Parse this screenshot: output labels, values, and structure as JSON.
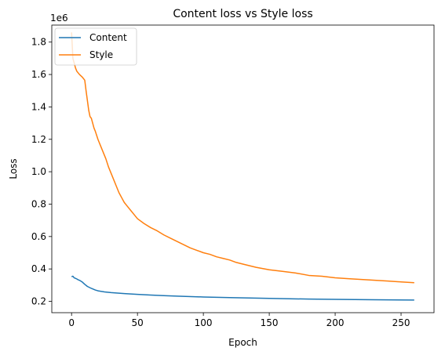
{
  "chart_data": {
    "type": "line",
    "title": "Content loss vs Style loss",
    "xlabel": "Epoch",
    "ylabel": "Loss",
    "y_offset_label": "1e6",
    "xlim": [
      -15,
      275
    ],
    "ylim": [
      0.13,
      1.905
    ],
    "x_ticks": [
      0,
      50,
      100,
      150,
      200,
      250
    ],
    "x_tick_labels": [
      "0",
      "50",
      "100",
      "150",
      "200",
      "250"
    ],
    "y_ticks": [
      0.2,
      0.4,
      0.6,
      0.8,
      1.0,
      1.2,
      1.4,
      1.6,
      1.8
    ],
    "y_tick_labels": [
      "0.2",
      "0.4",
      "0.6",
      "0.8",
      "1.0",
      "1.2",
      "1.4",
      "1.6",
      "1.8"
    ],
    "legend_position": "top-left",
    "series": [
      {
        "name": "Content",
        "color": "#1f77b4",
        "points": [
          [
            0,
            0.352
          ],
          [
            1,
            0.355
          ],
          [
            2,
            0.345
          ],
          [
            3,
            0.342
          ],
          [
            4,
            0.338
          ],
          [
            5,
            0.333
          ],
          [
            6,
            0.33
          ],
          [
            8,
            0.32
          ],
          [
            10,
            0.305
          ],
          [
            12,
            0.292
          ],
          [
            15,
            0.28
          ],
          [
            18,
            0.27
          ],
          [
            20,
            0.265
          ],
          [
            25,
            0.258
          ],
          [
            30,
            0.254
          ],
          [
            40,
            0.248
          ],
          [
            50,
            0.243
          ],
          [
            60,
            0.239
          ],
          [
            70,
            0.235
          ],
          [
            80,
            0.232
          ],
          [
            100,
            0.227
          ],
          [
            120,
            0.223
          ],
          [
            150,
            0.218
          ],
          [
            180,
            0.214
          ],
          [
            200,
            0.212
          ],
          [
            230,
            0.21
          ],
          [
            260,
            0.208
          ]
        ]
      },
      {
        "name": "Style",
        "color": "#ff7f0e",
        "points": [
          [
            0,
            1.86
          ],
          [
            1,
            1.7
          ],
          [
            2,
            1.67
          ],
          [
            3,
            1.64
          ],
          [
            4,
            1.62
          ],
          [
            6,
            1.6
          ],
          [
            8,
            1.585
          ],
          [
            10,
            1.565
          ],
          [
            11,
            1.5
          ],
          [
            12,
            1.44
          ],
          [
            13,
            1.38
          ],
          [
            14,
            1.34
          ],
          [
            15,
            1.33
          ],
          [
            16,
            1.3
          ],
          [
            17,
            1.27
          ],
          [
            18,
            1.25
          ],
          [
            20,
            1.2
          ],
          [
            22,
            1.16
          ],
          [
            24,
            1.12
          ],
          [
            26,
            1.08
          ],
          [
            28,
            1.03
          ],
          [
            30,
            0.99
          ],
          [
            32,
            0.95
          ],
          [
            34,
            0.91
          ],
          [
            36,
            0.87
          ],
          [
            38,
            0.84
          ],
          [
            40,
            0.81
          ],
          [
            42,
            0.79
          ],
          [
            45,
            0.76
          ],
          [
            48,
            0.73
          ],
          [
            50,
            0.71
          ],
          [
            55,
            0.68
          ],
          [
            60,
            0.655
          ],
          [
            65,
            0.635
          ],
          [
            70,
            0.61
          ],
          [
            75,
            0.59
          ],
          [
            80,
            0.57
          ],
          [
            85,
            0.55
          ],
          [
            90,
            0.53
          ],
          [
            95,
            0.515
          ],
          [
            100,
            0.5
          ],
          [
            105,
            0.49
          ],
          [
            110,
            0.475
          ],
          [
            115,
            0.465
          ],
          [
            120,
            0.455
          ],
          [
            125,
            0.44
          ],
          [
            130,
            0.43
          ],
          [
            140,
            0.41
          ],
          [
            150,
            0.395
          ],
          [
            160,
            0.385
          ],
          [
            170,
            0.375
          ],
          [
            180,
            0.36
          ],
          [
            190,
            0.355
          ],
          [
            200,
            0.345
          ],
          [
            210,
            0.34
          ],
          [
            220,
            0.335
          ],
          [
            230,
            0.33
          ],
          [
            240,
            0.325
          ],
          [
            250,
            0.32
          ],
          [
            260,
            0.315
          ]
        ]
      }
    ]
  }
}
